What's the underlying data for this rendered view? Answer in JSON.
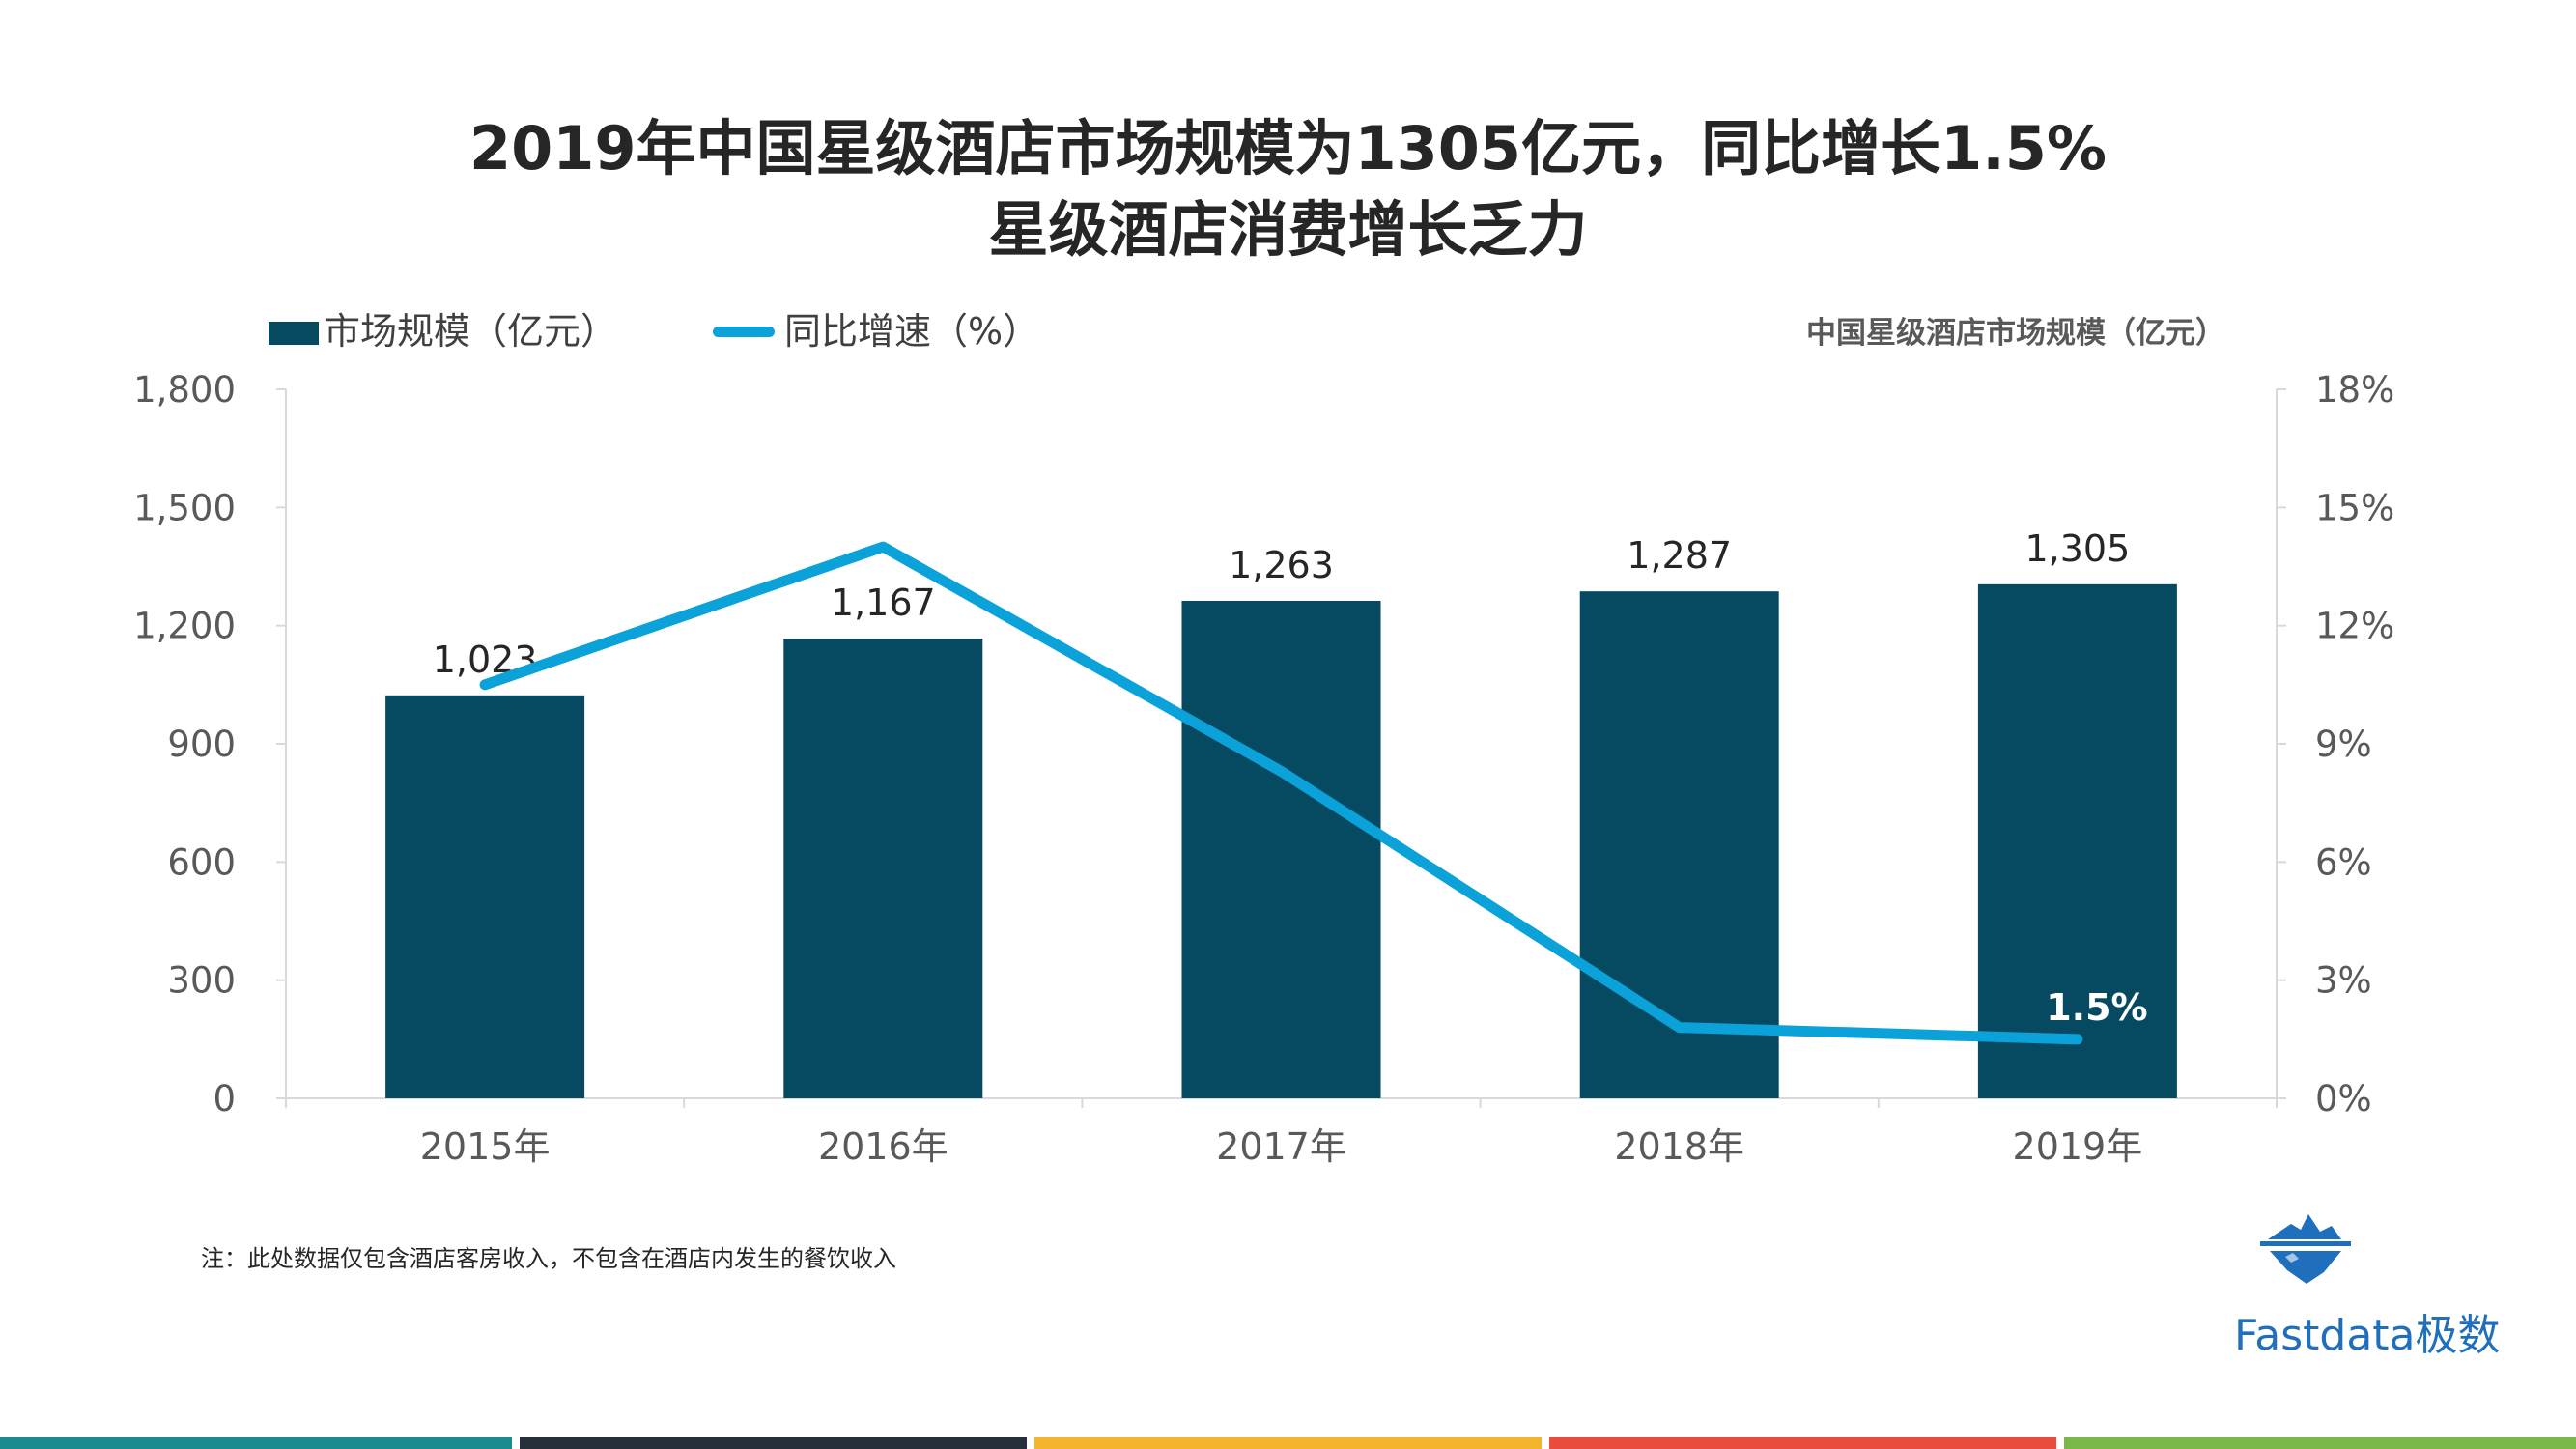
{
  "title": {
    "line1": "2019年中国星级酒店市场规模为1305亿元，同比增长1.5%",
    "line2": "星级酒店消费增长乏力"
  },
  "chart_caption": "中国星级酒店市场规模（亿元）",
  "note": "注：此处数据仅包含酒店客房收入，不包含在酒店内发生的餐饮收入",
  "brand": {
    "name": "Fastdata极数",
    "color": "#1f6fbd",
    "icon": "iceberg-logo-icon"
  },
  "colors": {
    "bar": "#064a61",
    "line": "#0aa2d9",
    "footer": [
      "#1a8b8f",
      "#25303b",
      "#f2b52c",
      "#e94b3c",
      "#7bb84a"
    ]
  },
  "chart_data": {
    "type": "bar",
    "categories": [
      "2015年",
      "2016年",
      "2017年",
      "2018年",
      "2019年"
    ],
    "series": [
      {
        "name": "市场规模（亿元）",
        "type": "bar",
        "axis": "left",
        "values": [
          1023,
          1167,
          1263,
          1287,
          1305
        ]
      },
      {
        "name": "同比增速（%）",
        "type": "line",
        "axis": "right",
        "values": [
          10.5,
          14.0,
          8.3,
          1.8,
          1.5
        ]
      }
    ],
    "bar_labels": [
      "1,023",
      "1,167",
      "1,263",
      "1,287",
      "1,305"
    ],
    "line_labels": [
      "",
      "",
      "",
      "",
      "1.5%"
    ],
    "y_left": {
      "ylim": [
        0,
        1800
      ],
      "ticks": [
        0,
        300,
        600,
        900,
        1200,
        1500,
        1800
      ],
      "tick_labels": [
        "0",
        "300",
        "600",
        "900",
        "1,200",
        "1,500",
        "1,800"
      ]
    },
    "y_right": {
      "ylim": [
        0,
        18
      ],
      "ticks": [
        0,
        3,
        6,
        9,
        12,
        15,
        18
      ],
      "tick_labels": [
        "0%",
        "3%",
        "6%",
        "9%",
        "12%",
        "15%",
        "18%"
      ]
    },
    "grid": false,
    "legend": "top-left"
  }
}
